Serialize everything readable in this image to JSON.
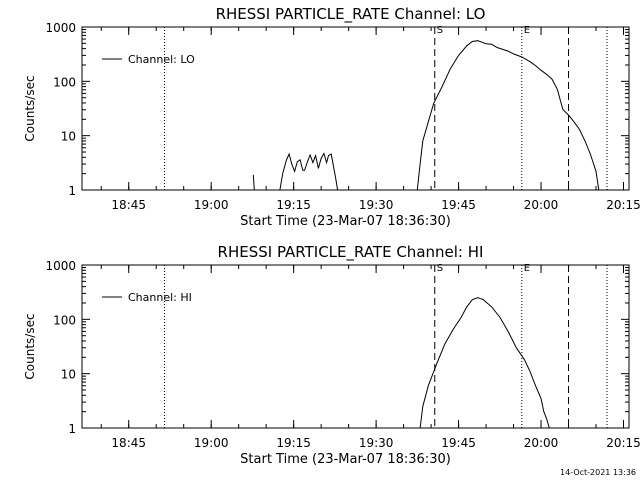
{
  "chart_data": [
    {
      "type": "line",
      "title": "RHESSI PARTICLE_RATE Channel: LO",
      "xlabel": "Start Time (23-Mar-07 18:36:30)",
      "ylabel": "Counts/sec",
      "yscale": "log",
      "ylim": [
        1,
        1000
      ],
      "xlim": [
        "18:36:30",
        "20:16:00"
      ],
      "x_ticks": [
        "18:45",
        "19:00",
        "19:15",
        "19:30",
        "19:45",
        "20:00",
        "20:15"
      ],
      "y_ticks": [
        "1",
        "10",
        "100",
        "1000"
      ],
      "grid": false,
      "legend": {
        "placement": "top-left",
        "entries": [
          "Channel: LO"
        ]
      },
      "markers": [
        {
          "time": "18:51:30",
          "style": "dotted",
          "label": ""
        },
        {
          "time": "19:40:40",
          "style": "dashed",
          "label": "S"
        },
        {
          "time": "19:56:30",
          "style": "dotted",
          "label": "E"
        },
        {
          "time": "20:05:00",
          "style": "dashed",
          "label": ""
        },
        {
          "time": "20:12:00",
          "style": "dotted",
          "label": ""
        }
      ],
      "series": [
        {
          "name": "Channel: LO",
          "segments": [
            [
              [
                "19:07:40",
                1.9
              ],
              [
                "19:07:50",
                1.0
              ]
            ],
            [
              [
                "19:12:30",
                1.0
              ],
              [
                "19:13:00",
                2.0
              ],
              [
                "19:13:40",
                3.5
              ],
              [
                "19:14:10",
                4.6
              ],
              [
                "19:14:40",
                3.0
              ],
              [
                "19:15:10",
                2.2
              ],
              [
                "19:15:40",
                3.3
              ],
              [
                "19:16:10",
                3.6
              ],
              [
                "19:16:40",
                2.3
              ],
              [
                "19:17:00",
                2.3
              ],
              [
                "19:17:30",
                3.3
              ],
              [
                "19:18:00",
                4.4
              ],
              [
                "19:18:30",
                3.2
              ],
              [
                "19:19:00",
                4.3
              ],
              [
                "19:19:30",
                2.5
              ],
              [
                "19:20:00",
                3.8
              ],
              [
                "19:20:30",
                4.7
              ],
              [
                "19:21:00",
                3.2
              ],
              [
                "19:21:20",
                4.3
              ],
              [
                "19:21:50",
                4.6
              ],
              [
                "19:22:10",
                3.0
              ],
              [
                "19:22:40",
                1.6
              ],
              [
                "19:23:00",
                1.0
              ]
            ],
            [
              [
                "19:37:30",
                1.0
              ],
              [
                "19:38:00",
                3.0
              ],
              [
                "19:38:30",
                8.0
              ],
              [
                "19:39:30",
                18
              ],
              [
                "19:40:30",
                40
              ],
              [
                "19:42:00",
                80
              ],
              [
                "19:43:30",
                170
              ],
              [
                "19:45:00",
                300
              ],
              [
                "19:46:30",
                450
              ],
              [
                "19:47:30",
                540
              ],
              [
                "19:48:30",
                560
              ],
              [
                "19:50:00",
                490
              ],
              [
                "19:51:00",
                480
              ],
              [
                "19:52:00",
                420
              ],
              [
                "19:54:00",
                360
              ],
              [
                "19:55:00",
                320
              ],
              [
                "19:56:30",
                280
              ],
              [
                "19:58:00",
                230
              ],
              [
                "19:59:00",
                195
              ],
              [
                "20:00:00",
                160
              ],
              [
                "20:01:00",
                135
              ],
              [
                "20:02:00",
                110
              ],
              [
                "20:03:00",
                70
              ],
              [
                "20:03:30",
                45
              ],
              [
                "20:04:00",
                30
              ],
              [
                "20:05:00",
                24
              ],
              [
                "20:06:00",
                18
              ],
              [
                "20:07:00",
                13
              ],
              [
                "20:08:00",
                8
              ],
              [
                "20:09:00",
                4.5
              ],
              [
                "20:10:00",
                2.2
              ],
              [
                "20:10:30",
                1.0
              ]
            ]
          ]
        }
      ]
    },
    {
      "type": "line",
      "title": "RHESSI PARTICLE_RATE Channel: HI",
      "xlabel": "Start Time (23-Mar-07 18:36:30)",
      "ylabel": "Counts/sec",
      "yscale": "log",
      "ylim": [
        1,
        1000
      ],
      "xlim": [
        "18:36:30",
        "20:16:00"
      ],
      "x_ticks": [
        "18:45",
        "19:00",
        "19:15",
        "19:30",
        "19:45",
        "20:00",
        "20:15"
      ],
      "y_ticks": [
        "1",
        "10",
        "100",
        "1000"
      ],
      "grid": false,
      "legend": {
        "placement": "top-left",
        "entries": [
          "Channel: HI"
        ]
      },
      "markers": [
        {
          "time": "18:51:30",
          "style": "dotted",
          "label": ""
        },
        {
          "time": "19:40:40",
          "style": "dashed",
          "label": "S"
        },
        {
          "time": "19:56:30",
          "style": "dotted",
          "label": "E"
        },
        {
          "time": "20:05:00",
          "style": "dashed",
          "label": ""
        },
        {
          "time": "20:12:00",
          "style": "dotted",
          "label": ""
        }
      ],
      "series": [
        {
          "name": "Channel: HI",
          "segments": [
            [
              [
                "19:38:00",
                1.0
              ],
              [
                "19:38:30",
                2.5
              ],
              [
                "19:39:30",
                6.0
              ],
              [
                "19:41:00",
                15
              ],
              [
                "19:42:30",
                35
              ],
              [
                "19:44:00",
                65
              ],
              [
                "19:45:30",
                110
              ],
              [
                "19:46:30",
                170
              ],
              [
                "19:47:30",
                230
              ],
              [
                "19:48:30",
                250
              ],
              [
                "19:49:30",
                230
              ],
              [
                "19:51:00",
                170
              ],
              [
                "19:52:30",
                110
              ],
              [
                "19:54:00",
                60
              ],
              [
                "19:55:30",
                30
              ],
              [
                "19:57:00",
                18
              ],
              [
                "19:58:00",
                11
              ],
              [
                "19:59:00",
                6.0
              ],
              [
                "20:00:00",
                3.5
              ],
              [
                "20:00:30",
                2.0
              ],
              [
                "20:01:00",
                1.5
              ],
              [
                "20:01:30",
                1.0
              ]
            ]
          ]
        }
      ]
    }
  ],
  "footer": {
    "timestamp": "14-Oct-2021 13:36"
  }
}
